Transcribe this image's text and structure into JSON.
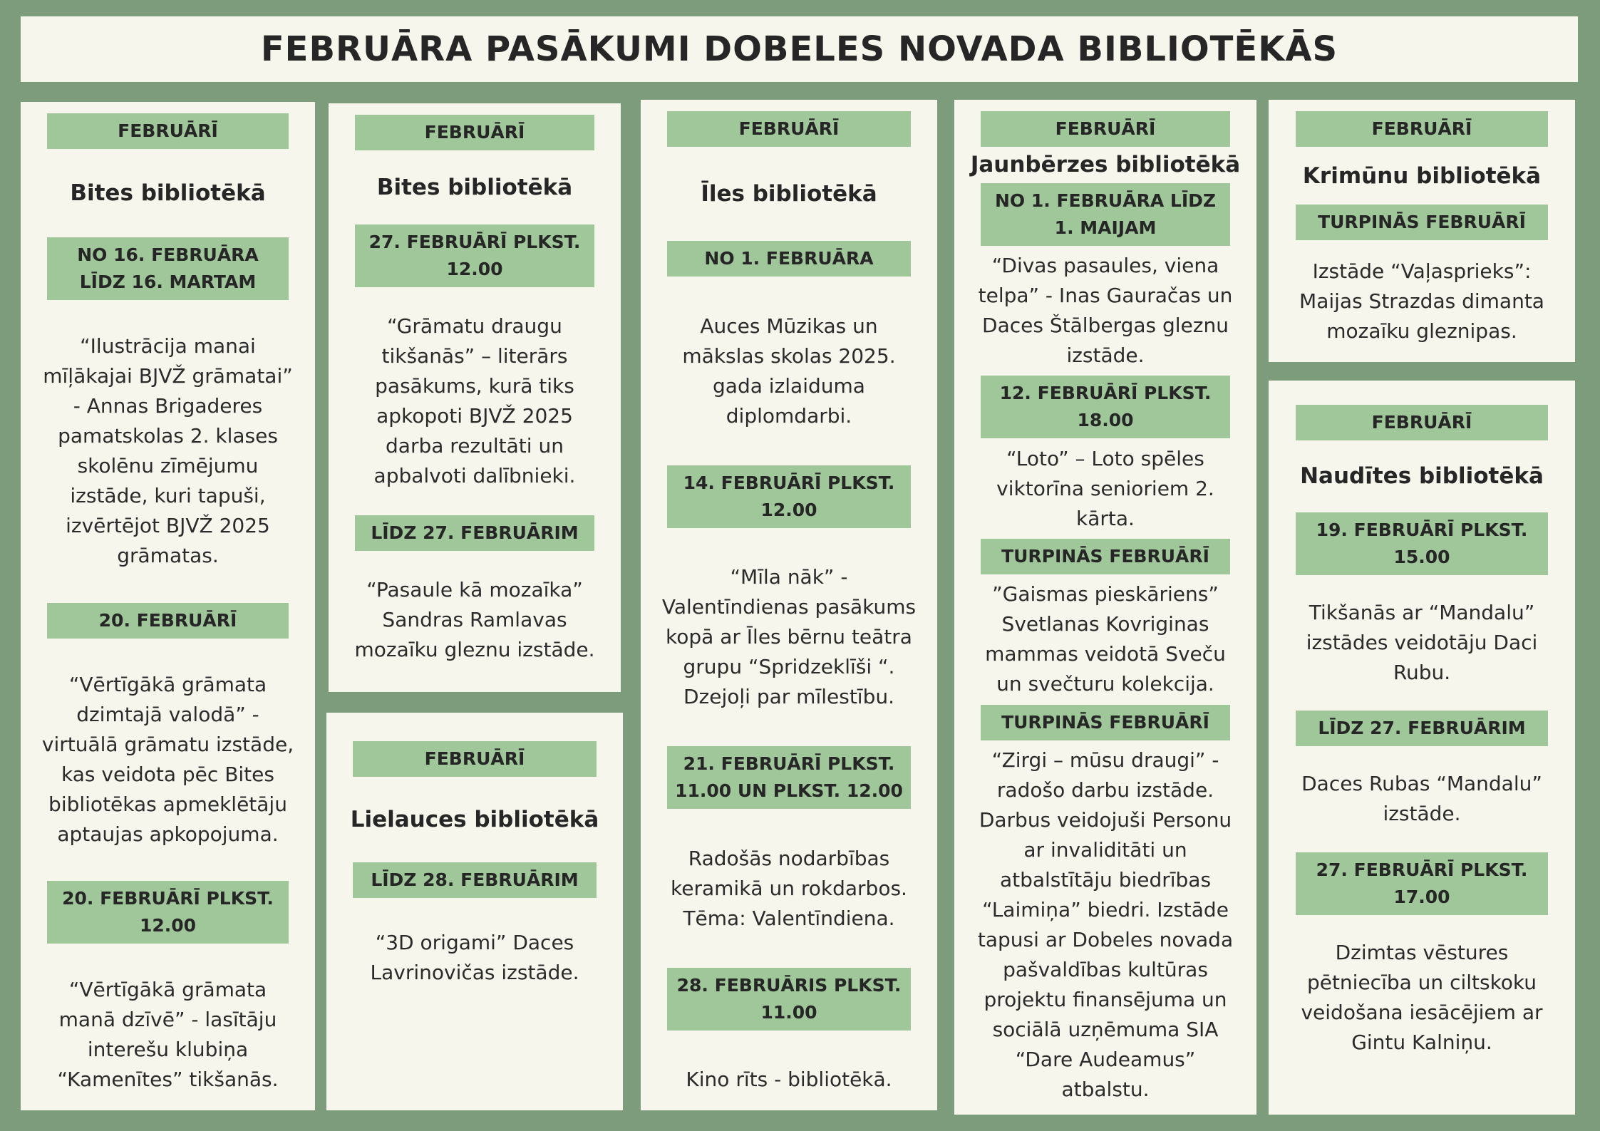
{
  "title": "FEBRUĀRA PASĀKUMI DOBELES NOVADA BIBLIOTĒKĀS",
  "colors": {
    "background": "#7d9c7b",
    "panel": "#f6f6ec",
    "tag": "#9fc79a"
  },
  "panels": [
    {
      "id": "bite-1",
      "items": [
        {
          "type": "tag",
          "text": "FEBRUĀRĪ"
        },
        {
          "type": "heading",
          "text": "Bites bibliotēkā"
        },
        {
          "type": "tag",
          "text": "NO 16. FEBRUĀRA LĪDZ 16. MARTAM"
        },
        {
          "type": "text",
          "text": "“Ilustrācija manai mīļākajai BJVŽ grāmatai” - Annas Brigaderes pamatskolas 2. klases skolēnu zīmējumu izstāde, kuri tapuši, izvērtējot BJVŽ 2025 grāmatas."
        },
        {
          "type": "tag",
          "text": "20. FEBRUĀRĪ"
        },
        {
          "type": "text",
          "text": "“Vērtīgākā grāmata dzimtajā valodā” - virtuālā grāmatu izstāde, kas veidota pēc Bites bibliotēkas apmeklētāju aptaujas apkopojuma."
        },
        {
          "type": "tag",
          "text": "20. FEBRUĀRĪ PLKST. 12.00"
        },
        {
          "type": "text",
          "text": "“Vērtīgākā grāmata manā dzīvē” - lasītāju interešu klubiņa “Kamenītes” tikšanās."
        }
      ]
    },
    {
      "id": "bite-2",
      "items": [
        {
          "type": "tag",
          "text": "FEBRUĀRĪ"
        },
        {
          "type": "heading",
          "text": "Bites bibliotēkā"
        },
        {
          "type": "tag",
          "text": "27. FEBRUĀRĪ PLKST. 12.00"
        },
        {
          "type": "text",
          "text": "“Grāmatu draugu tikšanās” – literārs pasākums, kurā tiks apkopoti BJVŽ 2025 darba rezultāti un apbalvoti dalībnieki."
        },
        {
          "type": "tag",
          "text": "LĪDZ 27. FEBRUĀRIM"
        },
        {
          "type": "text",
          "text": "“Pasaule kā mozaīka” Sandras Ramlavas mozaīku gleznu izstāde."
        }
      ]
    },
    {
      "id": "lielauce",
      "items": [
        {
          "type": "tag",
          "text": "FEBRUĀRĪ"
        },
        {
          "type": "heading",
          "text": "Lielauces bibliotēkā"
        },
        {
          "type": "tag",
          "text": "LĪDZ 28. FEBRUĀRIM"
        },
        {
          "type": "text",
          "text": "“3D origami” Daces Lavrinovičas izstāde."
        }
      ]
    },
    {
      "id": "iles",
      "items": [
        {
          "type": "tag",
          "text": "FEBRUĀRĪ"
        },
        {
          "type": "heading",
          "text": "Īles bibliotēkā"
        },
        {
          "type": "tag",
          "text": "NO 1. FEBRUĀRA"
        },
        {
          "type": "text",
          "text": "Auces Mūzikas un mākslas skolas 2025. gada izlaiduma diplomdarbi."
        },
        {
          "type": "tag",
          "text": "14. FEBRUĀRĪ PLKST. 12.00"
        },
        {
          "type": "text",
          "text": "“Mīla nāk” - Valentīndienas pasākums kopā ar Īles bērnu teātra grupu “Spridzeklīši “. Dzejoļi par mīlestību."
        },
        {
          "type": "tag",
          "text": "21. FEBRUĀRĪ PLKST. 11.00 UN PLKST. 12.00"
        },
        {
          "type": "text",
          "text": "Radošās nodarbības keramikā un rokdarbos. Tēma: Valentīndiena."
        },
        {
          "type": "tag",
          "text": "28. FEBRUĀRIS PLKST. 11.00"
        },
        {
          "type": "text",
          "text": "Kino rīts - bibliotēkā."
        }
      ]
    },
    {
      "id": "jaunberze",
      "items": [
        {
          "type": "tag",
          "text": "FEBRUĀRĪ"
        },
        {
          "type": "heading",
          "text": "Jaunbērzes bibliotēkā"
        },
        {
          "type": "tag",
          "text": "NO 1. FEBRUĀRA LĪDZ 1. MAIJAM"
        },
        {
          "type": "text",
          "text": "“Divas pasaules, viena telpa” - Inas Gauračas un Daces Štālbergas gleznu izstāde."
        },
        {
          "type": "tag",
          "text": "12. FEBRUĀRĪ PLKST. 18.00"
        },
        {
          "type": "text",
          "text": "“Loto” – Loto spēles viktorīna senioriem 2. kārta."
        },
        {
          "type": "tag",
          "text": "TURPINĀS FEBRUĀRĪ"
        },
        {
          "type": "text",
          "text": "”Gaismas pieskāriens” Svetlanas Kovriginas mammas veidotā Sveču un svečturu kolekcija."
        },
        {
          "type": "tag",
          "text": "TURPINĀS FEBRUĀRĪ"
        },
        {
          "type": "text",
          "text": "“Zirgi – mūsu draugi” - radošo darbu izstāde. Darbus veidojuši Personu ar invaliditāti un atbalstītāju biedrības “Laimiņa” biedri. Izstāde tapusi ar Dobeles novada pašvaldības kultūras projektu finansējuma un sociālā uzņēmuma SIA “Dare Audeamus” atbalstu."
        }
      ]
    },
    {
      "id": "krimuni",
      "items": [
        {
          "type": "tag",
          "text": "FEBRUĀRĪ"
        },
        {
          "type": "heading",
          "text": "Krimūnu bibliotēkā"
        },
        {
          "type": "tag",
          "text": "TURPINĀS FEBRUĀRĪ"
        },
        {
          "type": "text",
          "text": "Izstāde “Vaļasprieks”: Maijas Strazdas dimanta mozaīku gleznipas."
        }
      ]
    },
    {
      "id": "naudite",
      "items": [
        {
          "type": "tag",
          "text": "FEBRUĀRĪ"
        },
        {
          "type": "heading",
          "text": "Naudītes bibliotēkā"
        },
        {
          "type": "tag",
          "text": "19. FEBRUĀRĪ PLKST. 15.00"
        },
        {
          "type": "text",
          "text": "Tikšanās ar “Mandalu” izstādes veidotāju Daci Rubu."
        },
        {
          "type": "tag",
          "text": "LĪDZ 27. FEBRUĀRIM"
        },
        {
          "type": "text",
          "text": "Daces Rubas “Mandalu” izstāde."
        },
        {
          "type": "tag",
          "text": "27. FEBRUĀRĪ PLKST. 17.00"
        },
        {
          "type": "text",
          "text": "Dzimtas vēstures pētniecība un ciltskoku veidošana iesācējiem ar Gintu Kalniņu."
        }
      ]
    }
  ]
}
